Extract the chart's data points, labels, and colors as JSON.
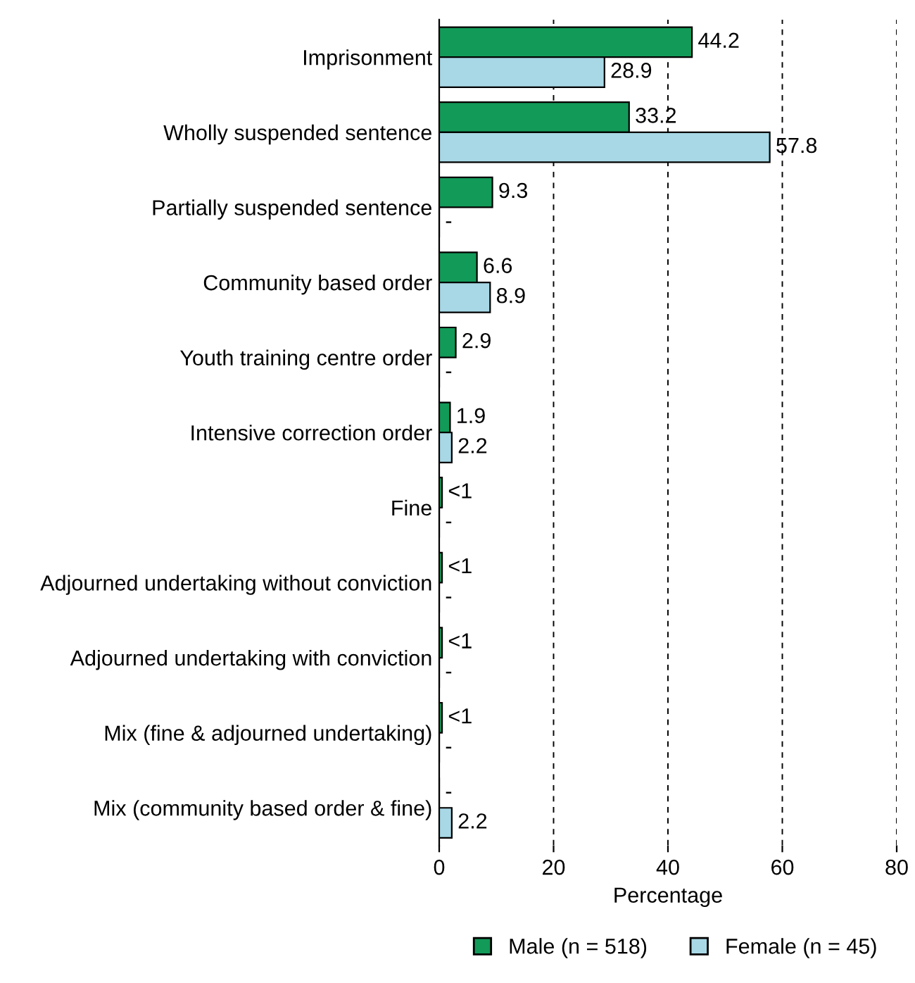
{
  "chart_data": {
    "type": "bar",
    "orientation": "horizontal",
    "xlabel": "Percentage",
    "categories": [
      "Imprisonment",
      "Wholly suspended sentence",
      "Partially suspended sentence",
      "Community based order",
      "Youth training centre order",
      "Intensive correction order",
      "Fine",
      "Adjourned undertaking without conviction",
      "Adjourned undertaking with conviction",
      "Mix (fine & adjourned undertaking)",
      "Mix (community based order & fine)"
    ],
    "series": [
      {
        "name": "Male (n = 518)",
        "color": "#129a59",
        "values": [
          44.2,
          33.2,
          9.3,
          6.6,
          2.9,
          1.9,
          0.5,
          0.5,
          0.5,
          0.5,
          0
        ],
        "value_labels": [
          "44.2",
          "33.2",
          "9.3",
          "6.6",
          "2.9",
          "1.9",
          "<1",
          "<1",
          "<1",
          "<1",
          "-"
        ]
      },
      {
        "name": "Female (n = 45)",
        "color": "#a8d8e6",
        "values": [
          28.9,
          57.8,
          0,
          8.9,
          0,
          2.2,
          0,
          0,
          0,
          0,
          2.2
        ],
        "value_labels": [
          "28.9",
          "57.8",
          "-",
          "8.9",
          "-",
          "2.2",
          "-",
          "-",
          "-",
          "-",
          "2.2"
        ]
      }
    ],
    "xlim": [
      0,
      80
    ],
    "xticks": [
      0,
      20,
      40,
      60,
      80
    ],
    "grid": "x",
    "legend": "bottom"
  }
}
